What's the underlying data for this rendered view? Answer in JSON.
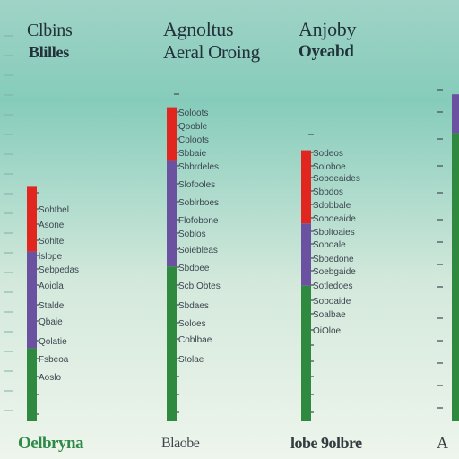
{
  "panel_headings": [
    {
      "line1": "Clbins",
      "line2": "Blilles"
    },
    {
      "line1": "Agnoltus",
      "line2": "Aeral Oroing"
    },
    {
      "line1": "Anjoby",
      "line2": "Oyeabd"
    }
  ],
  "bottom_labels": [
    "Oelbryna",
    "Blaobe",
    "lobe 9olbre",
    "A"
  ],
  "tick_labels": {
    "c1": [
      "Sohtbel",
      "Asone",
      "Sohlte",
      "lslope",
      "Sebpedas",
      "Aoiola",
      "Stalde",
      "Qbaie",
      "Qolatie",
      "Fsbeoa",
      "Aoslo"
    ],
    "c2": [
      "Soloots",
      "Qooble",
      "Coloots",
      "Sbbaie",
      "Sbbrdeles",
      "Slofooles",
      "Soblrboes",
      "Flofobone",
      "Soblos",
      "Soiebleas",
      "Sbdoee",
      "Scb Obtes",
      "Sbdaes",
      "Soloes",
      "Coblbae",
      "Stolae"
    ],
    "c3": [
      "Sodeos",
      "Soloboe",
      "Soboeaides",
      "Sbbdos",
      "Sdobbale",
      "Soboeaide",
      "Sboltoaies",
      "Soboale",
      "Sboedone",
      "Soebgaide",
      "Sotledoes",
      "Soboaide",
      "Soalbae",
      "OiOloe"
    ]
  },
  "chart_data": [
    {
      "type": "bar",
      "stacked": true,
      "title": "Clbins Blilles",
      "categories": [
        ""
      ],
      "series": [
        {
          "color": "#2f8a3f",
          "values": [
            34
          ]
        },
        {
          "color": "#6a52a0",
          "values": [
            45
          ]
        },
        {
          "color": "#e0261f",
          "values": [
            30
          ]
        }
      ],
      "ylim": [
        0,
        152
      ]
    },
    {
      "type": "bar",
      "stacked": true,
      "title": "Agnoltus Aeral Oroing",
      "categories": [
        ""
      ],
      "series": [
        {
          "color": "#2f8a3f",
          "values": [
            72
          ]
        },
        {
          "color": "#6a52a0",
          "values": [
            49
          ]
        },
        {
          "color": "#e0261f",
          "values": [
            25
          ]
        }
      ],
      "ylim": [
        0,
        152
      ]
    },
    {
      "type": "bar",
      "stacked": true,
      "title": "Anjoby Oyeabd",
      "categories": [
        ""
      ],
      "series": [
        {
          "color": "#2f8a3f",
          "values": [
            63
          ]
        },
        {
          "color": "#6a52a0",
          "values": [
            29
          ]
        },
        {
          "color": "#e0261f",
          "values": [
            34
          ]
        }
      ],
      "ylim": [
        0,
        152
      ]
    },
    {
      "type": "bar",
      "stacked": true,
      "title": "",
      "categories": [
        ""
      ],
      "series": [
        {
          "color": "#2f8a3f",
          "values": [
            134
          ]
        },
        {
          "color": "#6a52a0",
          "values": [
            18
          ]
        }
      ],
      "ylim": [
        0,
        152
      ]
    }
  ]
}
